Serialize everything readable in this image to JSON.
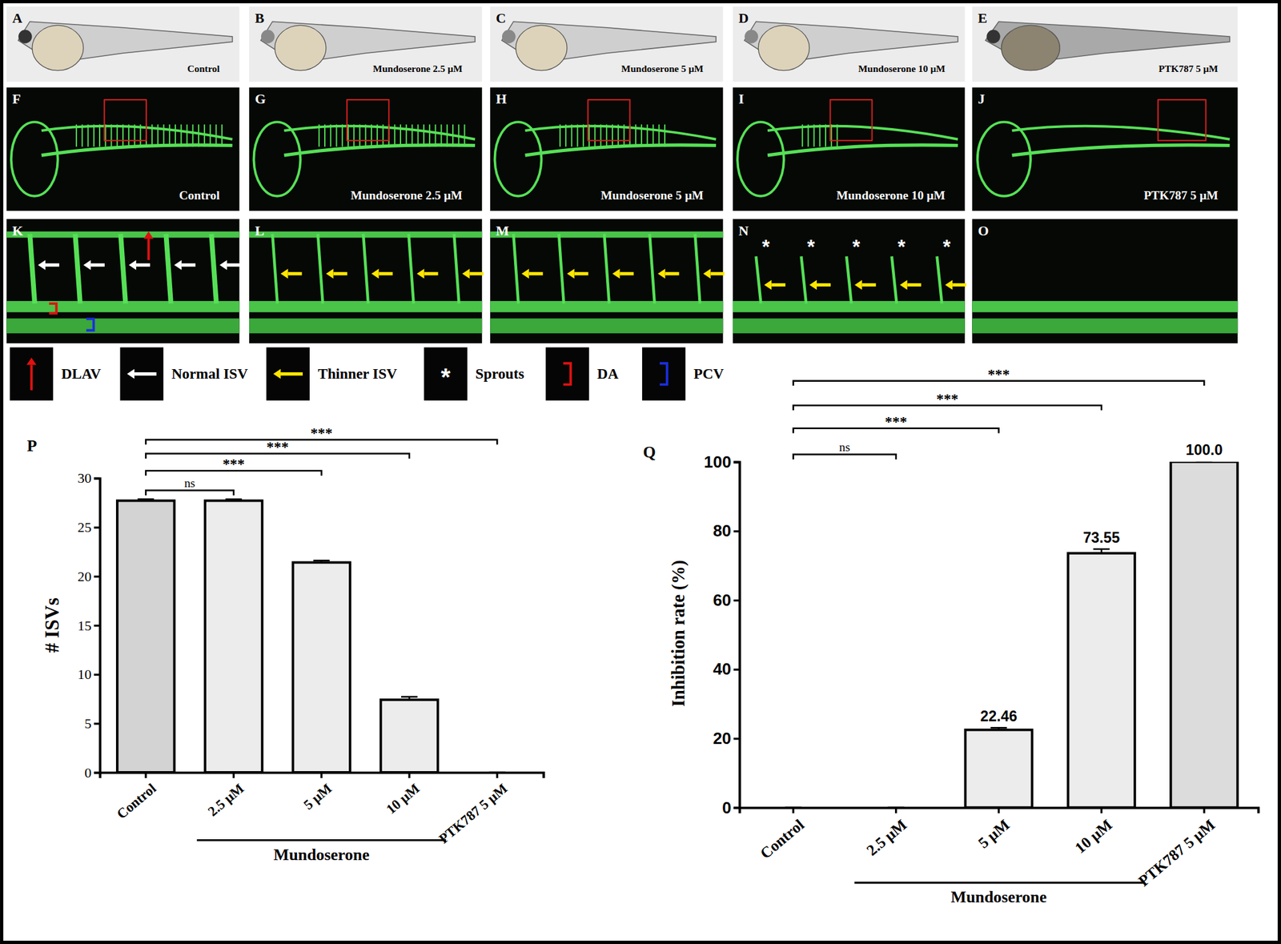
{
  "panels": [
    {
      "letter": "A",
      "label": "Control"
    },
    {
      "letter": "B",
      "label": "Mundoserone 2.5 μM"
    },
    {
      "letter": "C",
      "label": "Mundoserone 5 μM"
    },
    {
      "letter": "D",
      "label": "Mundoserone 10 μM"
    },
    {
      "letter": "E",
      "label": "PTK787 5 μM"
    },
    {
      "letter": "F",
      "label": "Control"
    },
    {
      "letter": "G",
      "label": "Mundoserone 2.5 μM"
    },
    {
      "letter": "H",
      "label": "Mundoserone 5 μM"
    },
    {
      "letter": "I",
      "label": "Mundoserone 10 μM"
    },
    {
      "letter": "J",
      "label": "PTK787 5 μM"
    },
    {
      "letter": "K"
    },
    {
      "letter": "L"
    },
    {
      "letter": "M"
    },
    {
      "letter": "N"
    },
    {
      "letter": "O"
    }
  ],
  "key": [
    {
      "label": "DLAV"
    },
    {
      "label": "Normal ISV"
    },
    {
      "label": "Thinner ISV"
    },
    {
      "label": "Sprouts",
      "symbol": "*"
    },
    {
      "label": "DA"
    },
    {
      "label": "PCV"
    }
  ],
  "chart_data": [
    {
      "type": "bar",
      "panel": "P",
      "categories": [
        "Control",
        "2.5 μM",
        "5 μM",
        "10 μM",
        "PTK787 5 μM"
      ],
      "values": [
        27.7,
        27.7,
        21.4,
        7.4,
        0
      ],
      "errors": [
        0.15,
        0.15,
        0.2,
        0.3,
        0
      ],
      "colors": [
        "#d3d3d3",
        "#ececec",
        "#ececec",
        "#ececec",
        "#e0e0e0"
      ],
      "ylabel": "# ISVs",
      "ylim": [
        0,
        30
      ],
      "yticks": [
        0,
        5,
        10,
        15,
        20,
        25,
        30
      ],
      "group_label": {
        "text": "Mundoserone",
        "from": 1,
        "to": 3
      },
      "significance": [
        {
          "from": 0,
          "to": 1,
          "label": "ns"
        },
        {
          "from": 0,
          "to": 2,
          "label": "***"
        },
        {
          "from": 0,
          "to": 3,
          "label": "***"
        },
        {
          "from": 0,
          "to": 4,
          "label": "***"
        }
      ]
    },
    {
      "type": "bar",
      "panel": "Q",
      "categories": [
        "Control",
        "2.5 μM",
        "5 μM",
        "10 μM",
        "PTK787 5 μM"
      ],
      "values": [
        0,
        0,
        22.46,
        73.55,
        100.0
      ],
      "value_labels": [
        null,
        null,
        "22.46",
        "73.55",
        "100.0"
      ],
      "data_labels": true,
      "errors": [
        0,
        0,
        0.6,
        1.2,
        0
      ],
      "colors": [
        "#ffffff",
        "#ececec",
        "#ececec",
        "#ececec",
        "#dcdcdc"
      ],
      "ylabel": "Inhibition rate (%)",
      "ylim": [
        0,
        100
      ],
      "yticks": [
        0,
        20,
        40,
        60,
        80,
        100
      ],
      "group_label": {
        "text": "Mundoserone",
        "from": 1,
        "to": 3
      },
      "significance": [
        {
          "from": 0,
          "to": 1,
          "label": "ns"
        },
        {
          "from": 0,
          "to": 2,
          "label": "***"
        },
        {
          "from": 0,
          "to": 3,
          "label": "***"
        },
        {
          "from": 0,
          "to": 4,
          "label": "***"
        }
      ]
    }
  ]
}
